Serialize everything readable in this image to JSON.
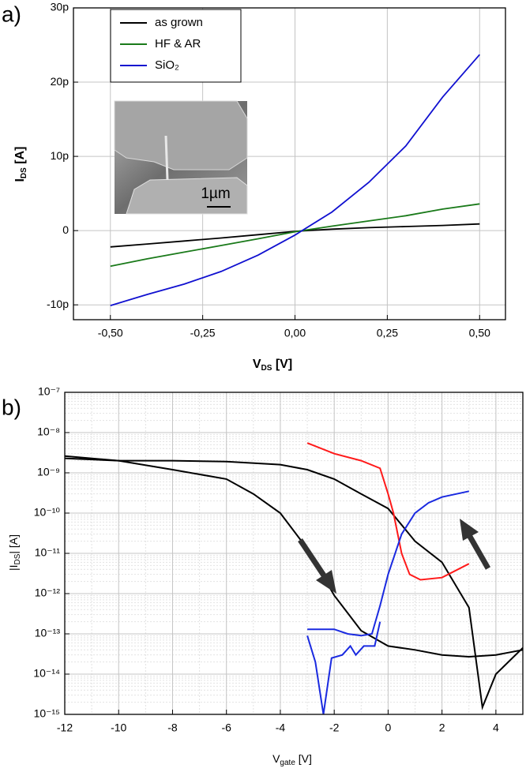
{
  "chart_data": [
    {
      "type": "line",
      "panel_label": "a)",
      "x_label": [
        "V",
        "DS",
        " [V]"
      ],
      "y_label": [
        "I",
        "DS",
        " [A]"
      ],
      "x": [
        -0.5,
        -0.4,
        -0.3,
        -0.2,
        -0.1,
        0,
        0.1,
        0.2,
        0.3,
        0.4,
        0.5
      ],
      "series": [
        {
          "name": "as grown",
          "color": "#000000",
          "values": [
            -2.2,
            -1.8,
            -1.4,
            -1.0,
            -0.55,
            -0.1,
            0.2,
            0.4,
            0.55,
            0.7,
            0.9
          ]
        },
        {
          "name": "HF & AR",
          "color": "#1a7a1a",
          "values": [
            -4.8,
            -3.8,
            -2.9,
            -2.0,
            -1.1,
            -0.15,
            0.6,
            1.3,
            2.0,
            2.9,
            3.6
          ]
        },
        {
          "name": "SiO₂",
          "color": "#1010d0",
          "values": [
            -10.1,
            -8.6,
            -7.2,
            -5.5,
            -3.3,
            -0.6,
            2.5,
            6.5,
            11.4,
            18.0,
            23.7
          ]
        }
      ],
      "xlim": [
        -0.6,
        0.57
      ],
      "xticks": [
        {
          "value": -0.5,
          "label": "-0,50"
        },
        {
          "value": -0.25,
          "label": "-0,25"
        },
        {
          "value": 0,
          "label": "0,00"
        },
        {
          "value": 0.25,
          "label": "0,25"
        },
        {
          "value": 0.5,
          "label": "0,50"
        }
      ],
      "ylim": [
        -12,
        30
      ],
      "yticks": [
        {
          "value": -10,
          "label": "-10p"
        },
        0,
        {
          "value": 10,
          "label": "10p"
        },
        {
          "value": 20,
          "label": "20p"
        },
        {
          "value": 30,
          "label": "30p"
        }
      ],
      "grid": true,
      "legend": "upper left",
      "inset_label": "1µm"
    },
    {
      "type": "line",
      "panel_label": "b)",
      "x_label": [
        "V",
        "gate",
        " [V]"
      ],
      "y_label": [
        "|I",
        "DS",
        "| [A]"
      ],
      "log_y": true,
      "series": [
        {
          "color": "#000000",
          "x": [
            -12,
            -10,
            -8,
            -6,
            -5,
            -4,
            -3,
            -2,
            -1,
            0,
            1,
            2,
            3,
            4,
            5
          ],
          "values": [
            2.6e-09,
            2e-09,
            1.2e-09,
            7e-10,
            3e-10,
            1e-10,
            1.3e-11,
            9e-13,
            1.2e-13,
            5e-14,
            4e-14,
            3e-14,
            2.7e-14,
            3e-14,
            4e-14
          ]
        },
        {
          "color": "#000000",
          "x": [
            -12,
            -10,
            -8,
            -6,
            -4,
            -3,
            -2,
            -1,
            0,
            1,
            2,
            3,
            3.5,
            4,
            5
          ],
          "values": [
            2.3e-09,
            2e-09,
            2e-09,
            1.9e-09,
            1.6e-09,
            1.2e-09,
            7e-10,
            3e-10,
            1.3e-10,
            2e-11,
            6e-12,
            4.5e-13,
            1.5e-15,
            1e-14,
            4.5e-14
          ]
        },
        {
          "color": "#ff1a1a",
          "x": [
            -3,
            -2,
            -1,
            -0.3,
            0,
            0.2,
            0.5,
            0.8,
            1.2,
            2,
            3
          ],
          "values": [
            5.5e-09,
            3e-09,
            2e-09,
            1.3e-09,
            3e-10,
            1e-10,
            1e-11,
            3e-12,
            2.2e-12,
            2.5e-12,
            5.5e-12
          ]
        },
        {
          "color": "#1a2ae0",
          "x": [
            -3,
            -2,
            -1.5,
            -1,
            -0.6,
            -0.3,
            0,
            0.5,
            1,
            1.5,
            2,
            3
          ],
          "values": [
            1.3e-13,
            1.3e-13,
            1e-13,
            9e-14,
            1e-13,
            5e-13,
            3e-12,
            3e-11,
            1e-10,
            1.8e-10,
            2.5e-10,
            3.5e-10
          ]
        },
        {
          "color": "#1a2ae0",
          "x": [
            -3,
            -2.7,
            -2.4,
            -2.1,
            -1.7,
            -1.4,
            -1.2,
            -0.9,
            -0.5,
            -0.3
          ],
          "values": [
            9e-14,
            2e-14,
            1e-15,
            2.5e-14,
            3e-14,
            5e-14,
            3e-14,
            5e-14,
            5e-14,
            2e-13
          ]
        }
      ],
      "xlim": [
        -12,
        5
      ],
      "xticks": [
        -12,
        -10,
        -8,
        -6,
        -4,
        -2,
        0,
        2,
        4
      ],
      "ylim": [
        1e-15,
        1e-07
      ],
      "yticks": [
        {
          "value": 1e-15,
          "label": "10⁻¹⁵"
        },
        {
          "value": 1e-14,
          "label": "10⁻¹⁴"
        },
        {
          "value": 1e-13,
          "label": "10⁻¹³"
        },
        {
          "value": 1e-12,
          "label": "10⁻¹²"
        },
        {
          "value": 1e-11,
          "label": "10⁻¹¹"
        },
        {
          "value": 1e-10,
          "label": "10⁻¹⁰"
        },
        {
          "value": 1e-09,
          "label": "10⁻⁹"
        },
        {
          "value": 1e-08,
          "label": "10⁻⁸"
        },
        {
          "value": 1e-07,
          "label": "10⁻⁷"
        }
      ],
      "grid": true,
      "minor_grid": true
    }
  ]
}
